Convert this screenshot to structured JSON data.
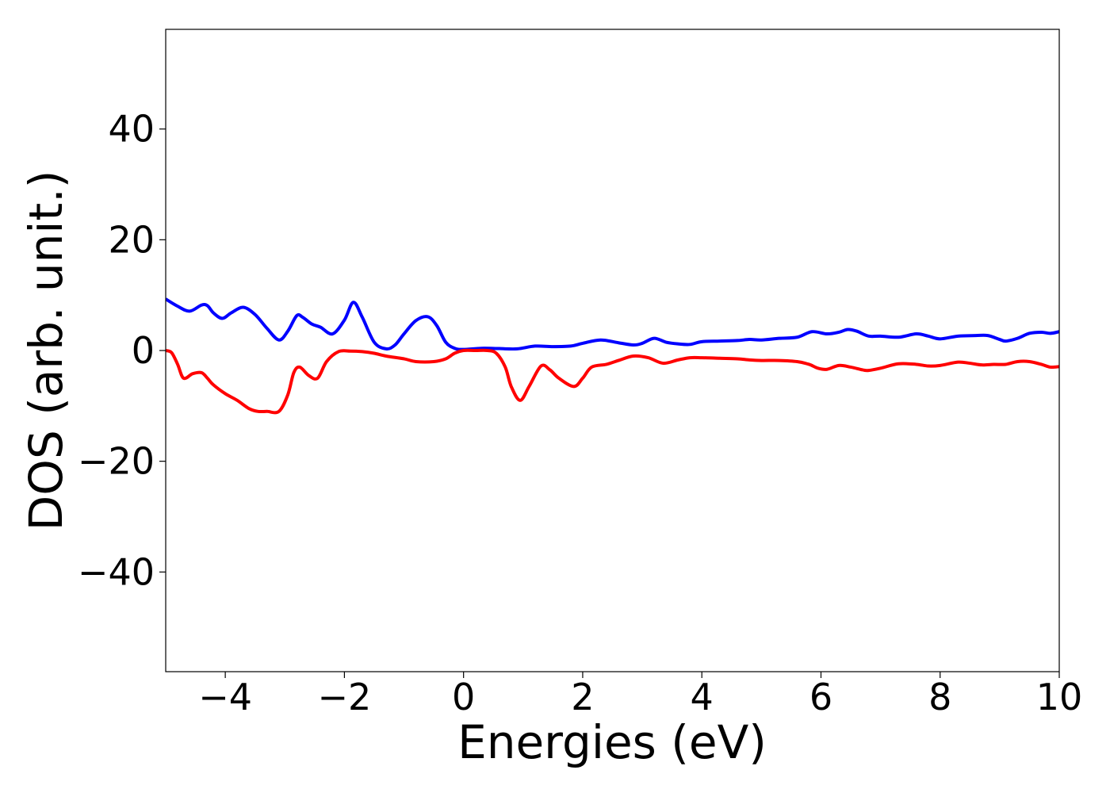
{
  "chart_data": {
    "type": "line",
    "xlabel": "Energies (eV)",
    "ylabel": "DOS (arb. unit.)",
    "xlim": [
      -5,
      10
    ],
    "ylim": [
      -58,
      58
    ],
    "xticks": [
      -4,
      -2,
      0,
      2,
      4,
      6,
      8,
      10
    ],
    "xtick_labels": [
      "−4",
      "−2",
      "0",
      "2",
      "4",
      "6",
      "8",
      "10"
    ],
    "yticks": [
      -40,
      -20,
      0,
      20,
      40
    ],
    "ytick_labels": [
      "−40",
      "−20",
      "0",
      "20",
      "40"
    ],
    "grid": false,
    "series": [
      {
        "color": "#0000ff",
        "x": [
          -5.0,
          -4.8,
          -4.6,
          -4.4,
          -4.3,
          -4.2,
          -4.05,
          -3.9,
          -3.7,
          -3.5,
          -3.3,
          -3.1,
          -2.95,
          -2.8,
          -2.7,
          -2.55,
          -2.4,
          -2.2,
          -2.0,
          -1.85,
          -1.7,
          -1.5,
          -1.3,
          -1.15,
          -1.0,
          -0.8,
          -0.6,
          -0.45,
          -0.3,
          -0.15,
          0.0,
          0.3,
          0.6,
          0.9,
          1.2,
          1.5,
          1.8,
          2.0,
          2.3,
          2.6,
          2.85,
          3.0,
          3.2,
          3.4,
          3.6,
          3.8,
          4.0,
          4.3,
          4.6,
          4.8,
          5.0,
          5.3,
          5.6,
          5.85,
          6.1,
          6.3,
          6.45,
          6.6,
          6.8,
          7.0,
          7.3,
          7.6,
          7.8,
          8.0,
          8.3,
          8.6,
          8.8,
          9.0,
          9.1,
          9.3,
          9.5,
          9.7,
          9.85,
          10.0
        ],
        "y": [
          9.3,
          8.0,
          7.1,
          8.2,
          8.1,
          6.8,
          5.8,
          6.8,
          7.8,
          6.5,
          4.0,
          1.9,
          3.5,
          6.3,
          6.0,
          4.8,
          4.2,
          3.0,
          5.5,
          8.7,
          6.0,
          1.5,
          0.3,
          1.0,
          3.0,
          5.4,
          6.1,
          4.5,
          1.5,
          0.4,
          0.2,
          0.4,
          0.35,
          0.3,
          0.8,
          0.7,
          0.8,
          1.3,
          1.9,
          1.4,
          1.0,
          1.3,
          2.2,
          1.5,
          1.2,
          1.1,
          1.6,
          1.7,
          1.8,
          2.0,
          1.9,
          2.2,
          2.4,
          3.4,
          3.0,
          3.3,
          3.8,
          3.5,
          2.6,
          2.6,
          2.4,
          3.0,
          2.6,
          2.1,
          2.6,
          2.7,
          2.7,
          2.0,
          1.7,
          2.2,
          3.1,
          3.3,
          3.1,
          3.4
        ]
      },
      {
        "color": "#ff0000",
        "x": [
          -5.0,
          -4.9,
          -4.8,
          -4.7,
          -4.55,
          -4.4,
          -4.3,
          -4.2,
          -4.0,
          -3.8,
          -3.6,
          -3.45,
          -3.3,
          -3.1,
          -2.95,
          -2.85,
          -2.75,
          -2.6,
          -2.45,
          -2.3,
          -2.1,
          -1.9,
          -1.7,
          -1.5,
          -1.3,
          -1.0,
          -0.8,
          -0.5,
          -0.3,
          -0.15,
          0.0,
          0.2,
          0.4,
          0.55,
          0.7,
          0.8,
          0.95,
          1.1,
          1.3,
          1.45,
          1.6,
          1.85,
          2.0,
          2.15,
          2.4,
          2.6,
          2.85,
          3.1,
          3.35,
          3.6,
          3.8,
          4.0,
          4.3,
          4.6,
          4.8,
          5.0,
          5.3,
          5.6,
          5.8,
          5.95,
          6.1,
          6.3,
          6.5,
          6.7,
          6.8,
          7.0,
          7.3,
          7.6,
          7.8,
          8.0,
          8.3,
          8.5,
          8.7,
          8.9,
          9.1,
          9.3,
          9.5,
          9.7,
          9.85,
          10.0
        ],
        "y": [
          0.0,
          -0.4,
          -2.5,
          -5.0,
          -4.2,
          -4.0,
          -5.0,
          -6.2,
          -7.8,
          -9.0,
          -10.5,
          -11.0,
          -11.0,
          -11.0,
          -8.0,
          -4.0,
          -3.0,
          -4.5,
          -5.0,
          -2.0,
          -0.2,
          -0.1,
          -0.2,
          -0.5,
          -1.0,
          -1.5,
          -2.0,
          -2.0,
          -1.5,
          -0.5,
          0.0,
          0.0,
          0.0,
          -0.5,
          -3.0,
          -6.5,
          -9.0,
          -6.5,
          -2.8,
          -3.5,
          -5.0,
          -6.5,
          -5.0,
          -3.0,
          -2.5,
          -1.8,
          -1.0,
          -1.3,
          -2.3,
          -1.7,
          -1.3,
          -1.3,
          -1.4,
          -1.5,
          -1.7,
          -1.8,
          -1.8,
          -2.0,
          -2.5,
          -3.2,
          -3.4,
          -2.7,
          -3.0,
          -3.5,
          -3.6,
          -3.2,
          -2.4,
          -2.5,
          -2.8,
          -2.7,
          -2.1,
          -2.3,
          -2.6,
          -2.5,
          -2.5,
          -2.0,
          -2.0,
          -2.5,
          -3.0,
          -2.9
        ]
      }
    ]
  }
}
